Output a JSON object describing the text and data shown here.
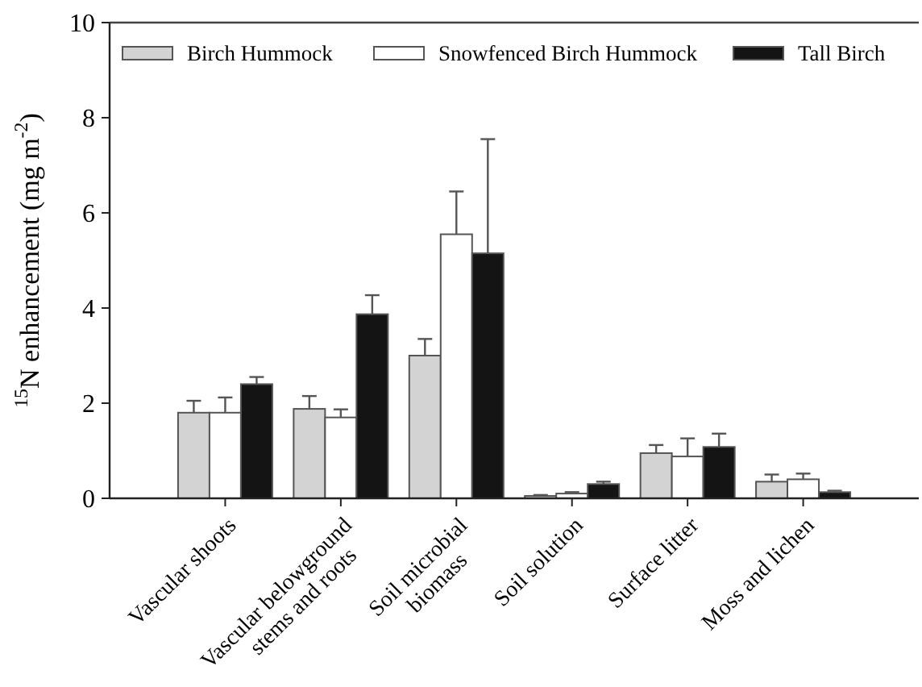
{
  "chart_data": {
    "type": "bar",
    "ylabel": "$^{15}$N enhancement (mg m$^{-2}$)",
    "categories": [
      "Vascular shoots",
      "Vascular belowground\nstems and roots",
      "Soil microbial\nbiomass",
      "Soil solution",
      "Surface litter",
      "Moss and lichen"
    ],
    "series": [
      {
        "name": "Birch Hummock",
        "color": "#d3d3d3",
        "values": [
          1.8,
          1.88,
          3.0,
          0.05,
          0.95,
          0.35
        ],
        "errors": [
          0.25,
          0.27,
          0.35,
          0.02,
          0.17,
          0.15
        ]
      },
      {
        "name": "Snowfenced Birch Hummock",
        "color": "#ffffff",
        "values": [
          1.8,
          1.7,
          5.55,
          0.1,
          0.88,
          0.4
        ],
        "errors": [
          0.32,
          0.17,
          0.9,
          0.03,
          0.38,
          0.12
        ]
      },
      {
        "name": "Tall Birch",
        "color": "#141414",
        "values": [
          2.4,
          3.87,
          5.15,
          0.3,
          1.08,
          0.13
        ],
        "errors": [
          0.15,
          0.4,
          2.4,
          0.05,
          0.28,
          0.03
        ]
      }
    ],
    "ylim": [
      0,
      10
    ],
    "yticks": [
      0,
      2,
      4,
      6,
      8,
      10
    ],
    "legend": "top",
    "grid": false
  }
}
